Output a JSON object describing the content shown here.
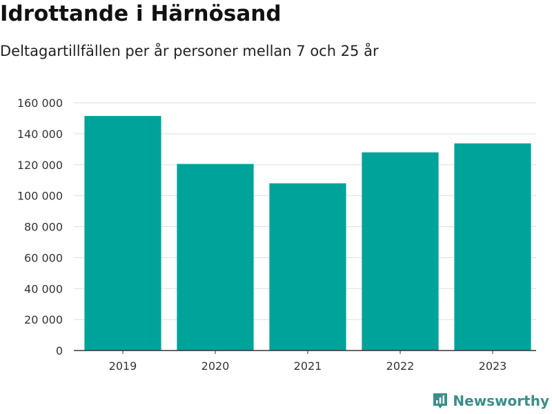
{
  "header": {
    "title": "Idrottande i Härnösand",
    "subtitle": "Deltagartillfällen per år personer mellan 7 och 25 år"
  },
  "brand": {
    "name": "Newsworthy",
    "icon": "newsworthy-logo-icon"
  },
  "colors": {
    "bar": "#00a39a",
    "grid": "#dddddd",
    "axis": "#333333",
    "brand": "#3a8f8a"
  },
  "chart_data": {
    "type": "bar",
    "title": "Idrottande i Härnösand",
    "subtitle": "Deltagartillfällen per år personer mellan 7 och 25 år",
    "categories": [
      "2019",
      "2020",
      "2021",
      "2022",
      "2023"
    ],
    "values": [
      151500,
      120500,
      108000,
      128000,
      133800
    ],
    "ylim": [
      0,
      160000
    ],
    "yticks": [
      0,
      20000,
      40000,
      60000,
      80000,
      100000,
      120000,
      140000,
      160000
    ],
    "ytick_labels": [
      "0",
      "20 000",
      "40 000",
      "60 000",
      "80 000",
      "100 000",
      "120 000",
      "140 000",
      "160 000"
    ],
    "xlabel": "",
    "ylabel": "",
    "grid": true,
    "legend": "none"
  }
}
